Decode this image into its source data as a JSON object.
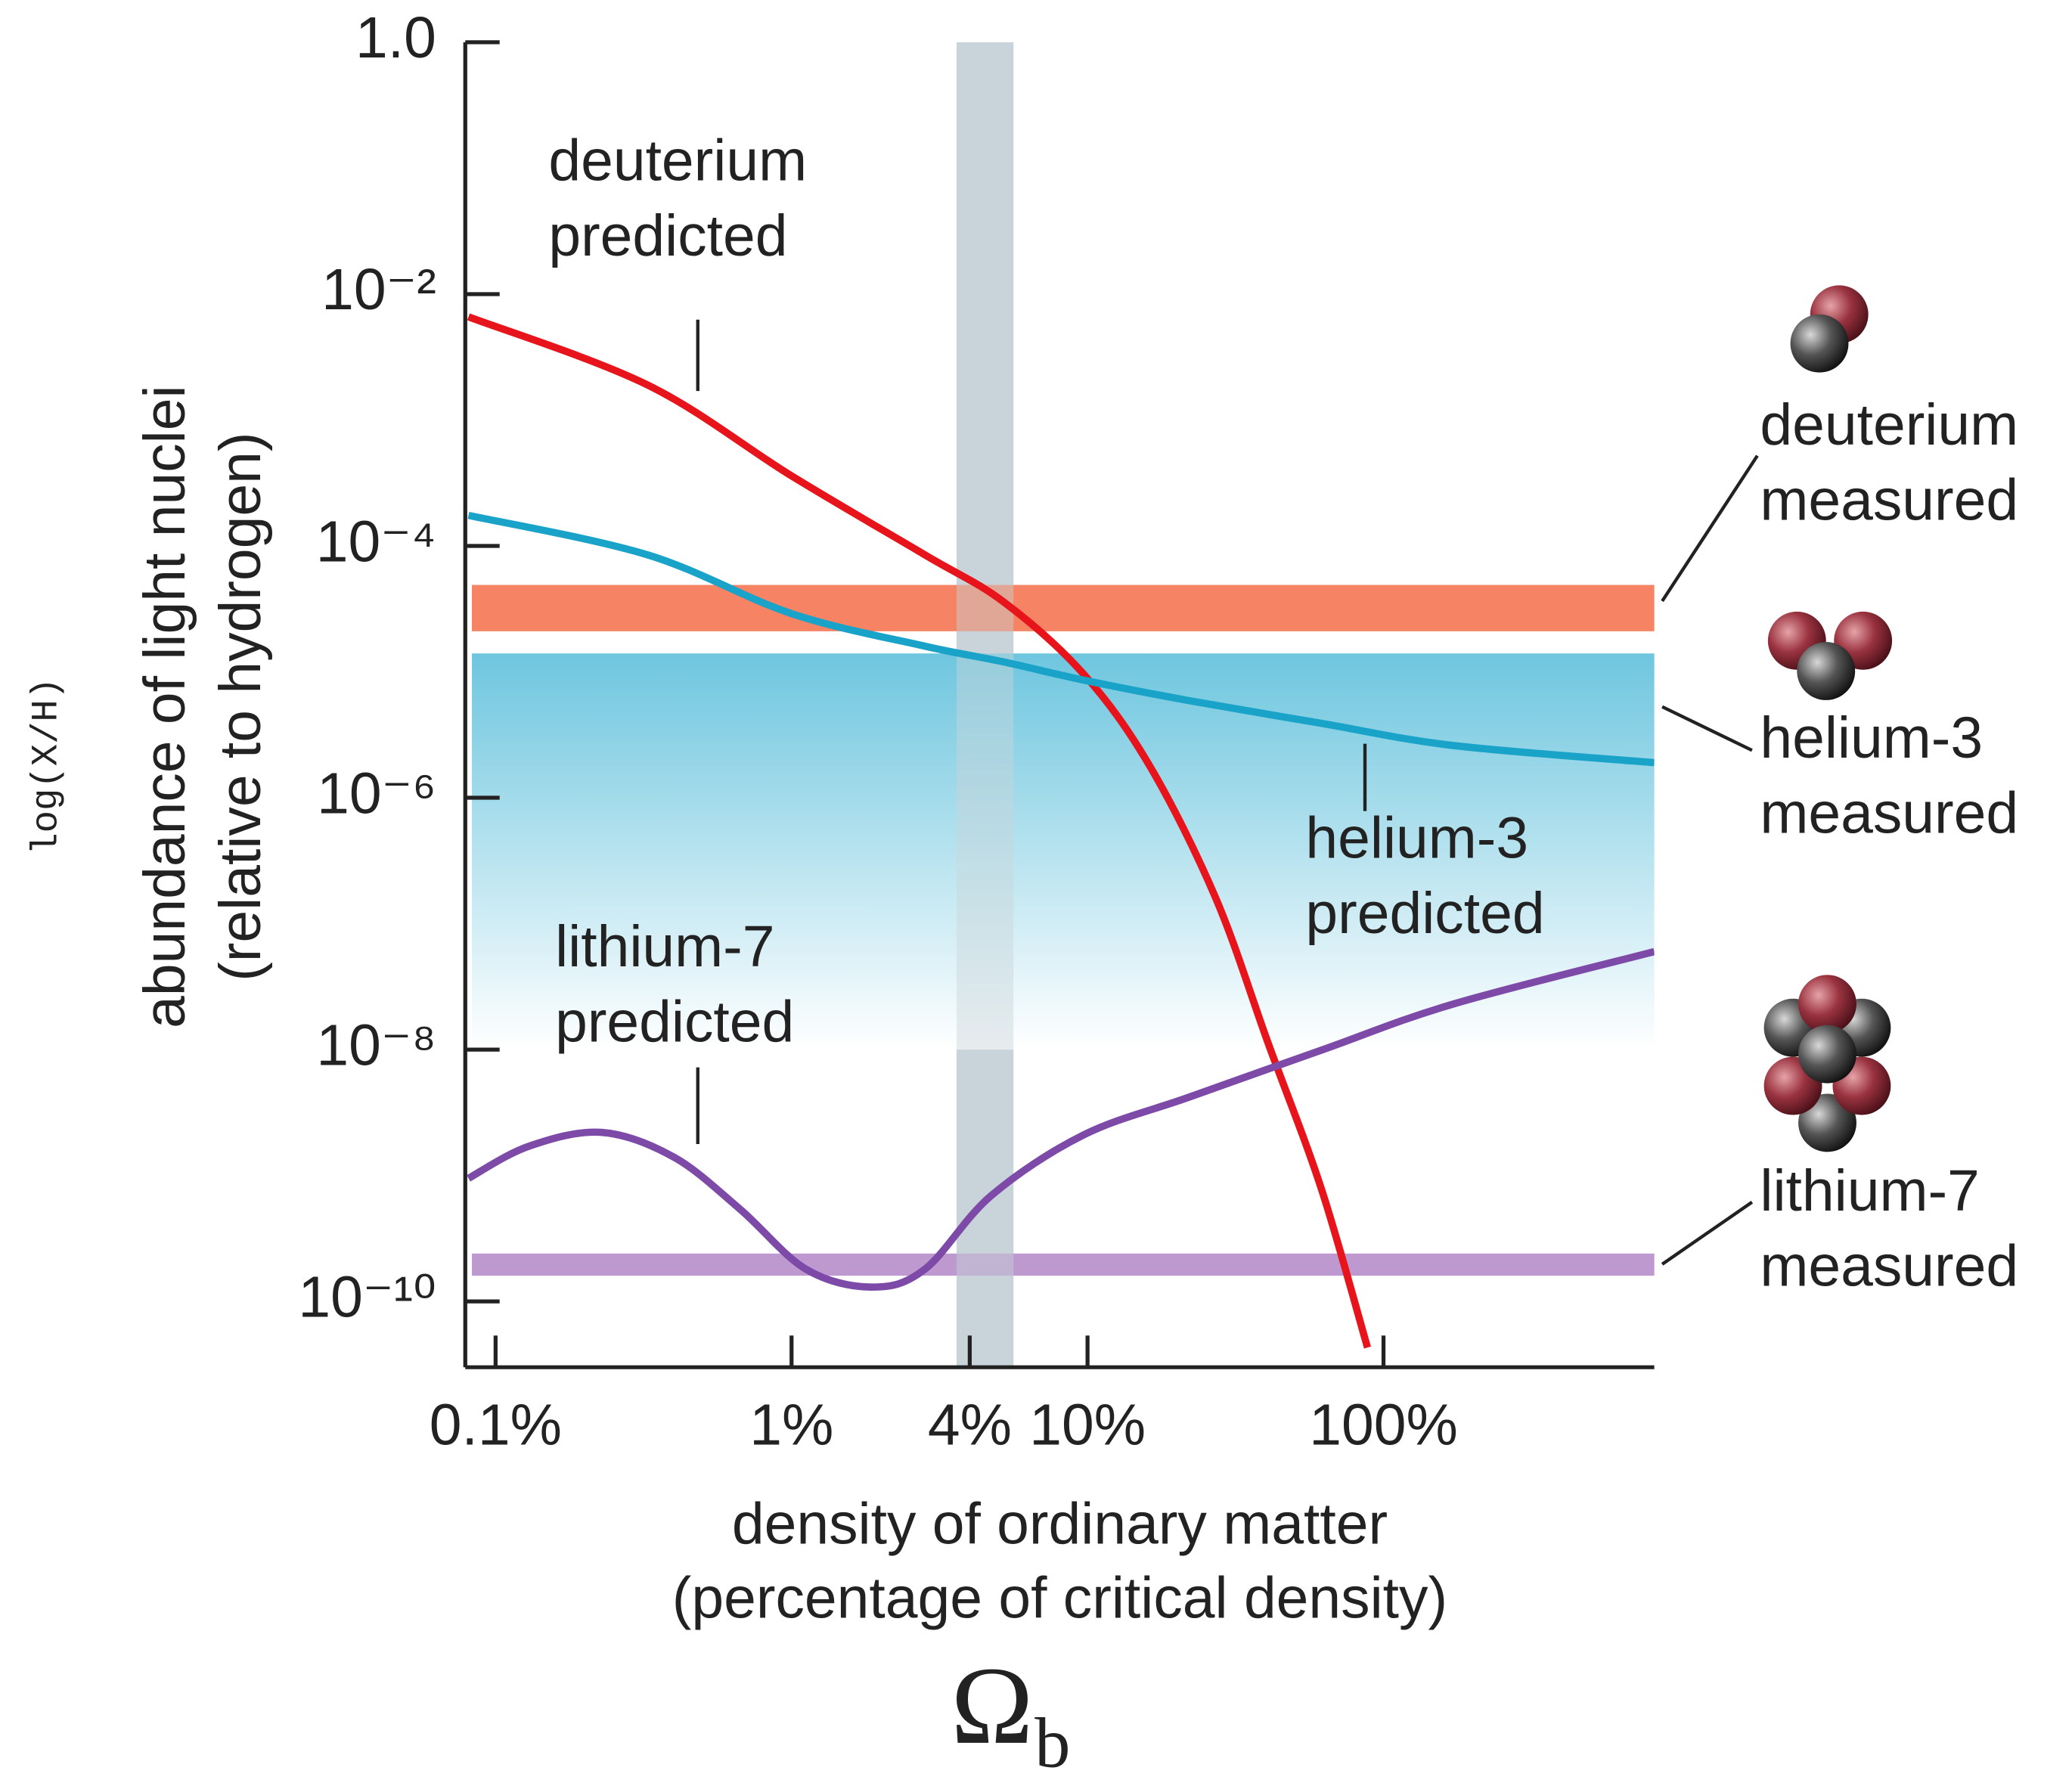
{
  "chart_data": {
    "type": "line",
    "xlog": true,
    "ylog": true,
    "x_label": [
      "density of ordinary matter",
      "(percentage of critical density)"
    ],
    "y_label": [
      "abundance of light nuclei",
      "(relative to hydrogen)"
    ],
    "y_axis_note": "log(X/H)",
    "x_symbol": {
      "main": "Ω",
      "sub": "b"
    },
    "xlim": [
      0.079,
      822
    ],
    "ylim": [
      3e-11,
      1
    ],
    "xticks": [
      {
        "value": 0.1,
        "label": "0.1%"
      },
      {
        "value": 1,
        "label": "1%"
      },
      {
        "value": 4,
        "label": "4%"
      },
      {
        "value": 10,
        "label": "10%"
      },
      {
        "value": 100,
        "label": "100%"
      }
    ],
    "yticks": [
      {
        "value": 1,
        "label": "1.0"
      },
      {
        "value": 0.01,
        "label": "10⁻²"
      },
      {
        "value": 0.0001,
        "label": "10⁻⁴"
      },
      {
        "value": 1e-06,
        "label": "10⁻⁶"
      },
      {
        "value": 1e-08,
        "label": "10⁻⁸"
      },
      {
        "value": 1e-10,
        "label": "10⁻¹⁰"
      }
    ],
    "highlight": {
      "range": [
        3.61,
        5.62
      ],
      "color": "#c9d4da"
    },
    "bands": [
      {
        "name": "deuterium measured",
        "color": "#f47c5c",
        "range": [
          2.1e-05,
          4.9e-05
        ]
      },
      {
        "name": "helium-3 measured",
        "color": "#6ec6df",
        "range": [
          1e-08,
          1.4e-05
        ]
      },
      {
        "name": "lithium-7 measured",
        "color": "#b994cc",
        "range": [
          1.6e-10,
          2.4e-10
        ]
      }
    ],
    "series": [
      {
        "name": "deuterium predicted",
        "color": "#e8141b",
        "x": [
          0.081,
          0.326,
          1.0,
          2.82,
          5.2,
          9.7,
          16.2,
          27.1,
          40.9,
          61.7,
          88.3
        ],
        "values": [
          0.0066,
          0.0019,
          0.00036,
          8.5e-05,
          3.6e-05,
          9.6e-06,
          1.8e-06,
          1.6e-07,
          1.1e-08,
          7.8e-10,
          4.3e-11
        ]
      },
      {
        "name": "helium-3 predicted",
        "color": "#1aa3c8",
        "x": [
          0.081,
          0.326,
          1.0,
          2.82,
          5.2,
          9.7,
          22.1,
          61.7,
          172,
          822
        ],
        "values": [
          0.000175,
          8.5e-05,
          2.9e-05,
          1.6e-05,
          1.2e-05,
          8.6e-06,
          5.9e-06,
          3.9e-06,
          2.6e-06,
          1.9e-06
        ]
      },
      {
        "name": "lithium-7 predicted",
        "color": "#7d4aa8",
        "x": [
          0.081,
          0.129,
          0.228,
          0.4,
          0.67,
          1.12,
          1.87,
          2.82,
          4.72,
          9.7,
          22.1,
          61.7,
          172,
          822
        ],
        "values": [
          9.5e-10,
          1.7e-09,
          2.2e-09,
          1.4e-09,
          5.4e-10,
          1.8e-10,
          1.3e-10,
          1.8e-10,
          6.9e-10,
          2.1e-09,
          4.2e-09,
          9.9e-09,
          2.3e-08,
          6e-08
        ]
      }
    ]
  }
}
